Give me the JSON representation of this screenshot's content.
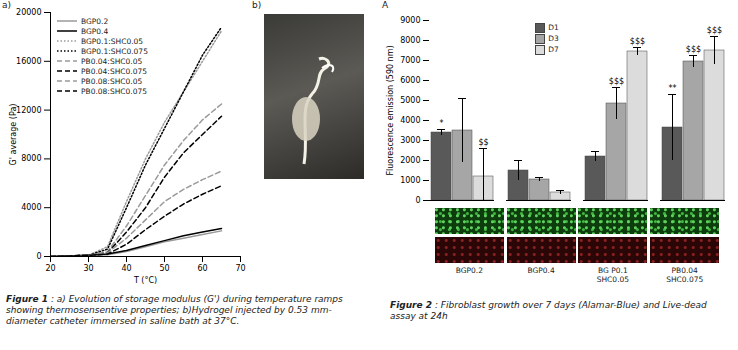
{
  "chart_data": [
    {
      "type": "line",
      "annotations": [
        "a)",
        "b)"
      ],
      "caption": {
        "label": "Figure 1",
        "text": " : a) Evolution of storage modulus (G') during temperature ramps showing thermosensentive properties; b)Hydrogel injected by 0.53 mm-diameter catheter immersed in saline bath at 37°C."
      },
      "x_label": "T (°C)",
      "y_label": "G' average (Pa)",
      "x": [
        20,
        25,
        30,
        35,
        40,
        45,
        50,
        55,
        60,
        65
      ],
      "xlim": [
        20,
        70
      ],
      "xticks": [
        20,
        30,
        40,
        50,
        60,
        70
      ],
      "ylim": [
        0,
        20000
      ],
      "yticks": [
        0,
        4000,
        8000,
        12000,
        16000,
        20000
      ],
      "legend": "top-left",
      "grid": false,
      "series": [
        {
          "name": "BGP0.2",
          "color": "#9a9a9a",
          "line_style": "solid",
          "values": [
            0,
            50,
            100,
            150,
            400,
            800,
            1200,
            1500,
            1800,
            2100
          ]
        },
        {
          "name": "BGP0.4",
          "color": "#000000",
          "line_style": "solid",
          "values": [
            0,
            50,
            100,
            200,
            500,
            900,
            1300,
            1700,
            2000,
            2300
          ]
        },
        {
          "name": "BGP0.1:SHC0.05",
          "color": "#9a9a9a",
          "line_style": "dotted",
          "values": [
            0,
            50,
            100,
            800,
            4500,
            8000,
            11000,
            13500,
            16000,
            18500
          ]
        },
        {
          "name": "BGP0.1:SHC0.075",
          "color": "#000000",
          "line_style": "dotted",
          "values": [
            0,
            50,
            100,
            600,
            4000,
            7500,
            10500,
            13500,
            16500,
            18800
          ]
        },
        {
          "name": "PB0.04:SHC0.05",
          "color": "#9a9a9a",
          "line_style": "dashed",
          "values": [
            0,
            50,
            100,
            400,
            2500,
            5000,
            7500,
            9500,
            11200,
            12500
          ]
        },
        {
          "name": "PB0.04:SHC0.075",
          "color": "#000000",
          "line_style": "dashed",
          "values": [
            0,
            50,
            100,
            300,
            2000,
            4000,
            6500,
            8500,
            10000,
            11500
          ]
        },
        {
          "name": "PB0.08:SHC0.05",
          "color": "#9a9a9a",
          "line_style": "dashed",
          "values": [
            0,
            50,
            100,
            300,
            1500,
            3000,
            4500,
            5500,
            6300,
            7000
          ]
        },
        {
          "name": "PB0.08:SHC0.075",
          "color": "#000000",
          "line_style": "dashed",
          "values": [
            0,
            50,
            100,
            200,
            1000,
            2200,
            3300,
            4300,
            5100,
            5800
          ]
        }
      ]
    },
    {
      "type": "bar",
      "annotations": [
        "A"
      ],
      "caption": {
        "label": "Figure 2",
        "text": " : Fibroblast growth over 7 days (Alamar-Blue) and Live-dead assay at 24h"
      },
      "y_label": "Fluorescence emission (590 nm)",
      "categories": [
        "BGP0.2",
        "BGP0.4",
        "BG P0.1\nSHC0.05",
        "PB0.04\nSHC0.075"
      ],
      "ylim": [
        0,
        9000
      ],
      "yticks": [
        0,
        1000,
        2000,
        3000,
        4000,
        5000,
        6000,
        7000,
        8000,
        9000
      ],
      "legend": "top",
      "tick_labels": "y",
      "grid": false,
      "series": [
        {
          "name": "D1",
          "color": "#595959",
          "values": [
            3400,
            1500,
            2200,
            3650
          ],
          "errors": [
            150,
            500,
            250,
            1650
          ],
          "significance": [
            "*",
            null,
            null,
            "**"
          ]
        },
        {
          "name": "D3",
          "color": "#a6a6a6",
          "values": [
            3500,
            1050,
            4850,
            6950
          ],
          "errors": [
            1600,
            100,
            800,
            300
          ],
          "significance": [
            null,
            null,
            "$$$",
            "$$$"
          ]
        },
        {
          "name": "D7",
          "color": "#dcdcdc",
          "values": [
            1200,
            400,
            7450,
            7500
          ],
          "errors": [
            1400,
            100,
            200,
            700
          ],
          "significance": [
            "$$",
            null,
            "$$$",
            "$$$"
          ]
        }
      ]
    }
  ]
}
